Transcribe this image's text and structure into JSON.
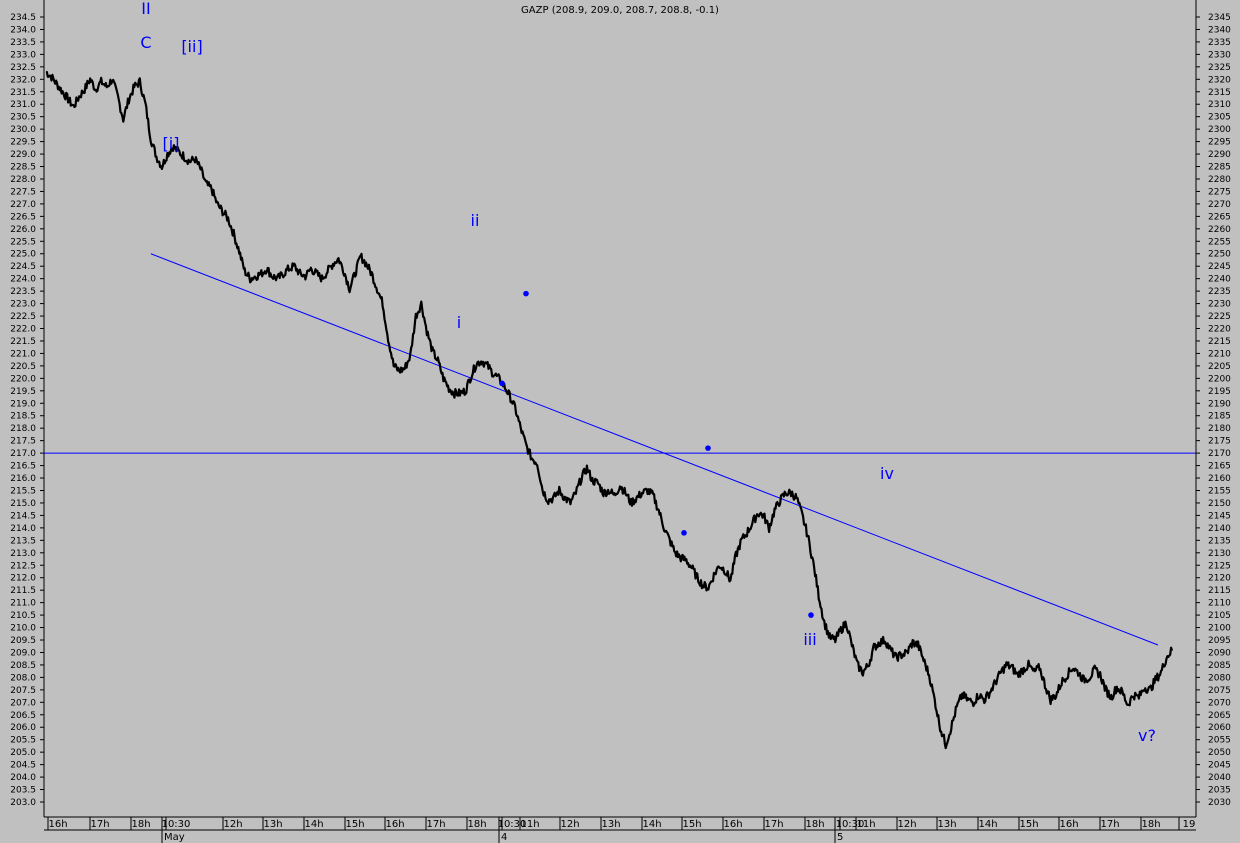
{
  "chart_data": {
    "type": "line",
    "title": "GAZP (208.9, 209.0, 208.7, 208.8, -0.1)",
    "xlabel": "",
    "ylabel": "",
    "ylim": [
      202.5,
      235.0
    ],
    "y_ticks": [
      "234.5",
      "234.0",
      "233.5",
      "233.0",
      "232.5",
      "232.0",
      "231.5",
      "231.0",
      "230.5",
      "230.0",
      "229.5",
      "229.0",
      "228.5",
      "228.0",
      "227.5",
      "227.0",
      "226.5",
      "226.0",
      "225.5",
      "225.0",
      "224.5",
      "224.0",
      "223.5",
      "223.0",
      "222.5",
      "222.0",
      "221.5",
      "221.0",
      "220.5",
      "220.0",
      "219.5",
      "219.0",
      "218.5",
      "218.0",
      "217.5",
      "217.0",
      "216.5",
      "216.0",
      "215.5",
      "215.0",
      "214.5",
      "214.0",
      "213.5",
      "213.0",
      "212.5",
      "212.0",
      "211.5",
      "211.0",
      "210.5",
      "210.0",
      "209.5",
      "209.0",
      "208.5",
      "208.0",
      "207.5",
      "207.0",
      "206.5",
      "206.0",
      "205.5",
      "205.0",
      "204.5",
      "204.0",
      "203.5",
      "203.0"
    ],
    "x_ticks": [
      "16h",
      "17h",
      "18h",
      "10:30",
      "12h",
      "13h",
      "14h",
      "15h",
      "16h",
      "17h",
      "18h",
      "10:30",
      "11h",
      "12h",
      "13h",
      "14h",
      "15h",
      "16h",
      "17h",
      "18h",
      "10:30",
      "11h",
      "12h",
      "13h",
      "14h",
      "15h",
      "16h",
      "17h",
      "18h",
      "19"
    ],
    "date_labels": [
      "May",
      "4",
      "5"
    ],
    "grid": false,
    "series": [
      {
        "values": [
          232.3,
          232.1,
          231.8,
          231.5,
          231.2,
          230.9,
          231.3,
          231.6,
          232.0,
          231.6,
          231.9,
          231.7,
          232.0,
          231.3,
          230.4,
          231.2,
          231.7,
          231.9,
          231.0,
          229.6,
          228.9,
          228.5,
          229.0,
          229.3,
          229.1,
          228.9,
          228.7,
          228.8,
          228.4,
          227.8,
          227.6,
          227.0,
          226.7,
          226.4,
          225.8,
          225.1,
          224.3,
          224.0,
          224.1,
          224.2,
          224.4,
          224.1,
          224.0,
          224.2,
          224.4,
          224.5,
          224.2,
          224.1,
          224.4,
          224.2,
          224.0,
          224.3,
          224.6,
          224.8,
          224.3,
          223.6,
          224.2,
          224.9,
          224.6,
          224.2,
          223.6,
          223.0,
          221.6,
          220.5,
          220.3,
          220.4,
          220.9,
          222.5,
          223.0,
          221.9,
          221.1,
          220.7,
          220.0,
          219.6,
          219.4,
          219.4,
          219.5,
          220.1,
          220.6,
          220.7,
          220.5,
          220.2,
          220.0,
          219.7,
          219.3,
          218.8,
          218.0,
          217.3,
          216.8,
          216.6,
          215.5,
          215.1,
          215.2,
          215.5,
          215.2,
          215.0,
          215.4,
          216.0,
          216.4,
          215.9,
          215.8,
          215.4,
          215.5,
          215.3,
          215.7,
          215.4,
          215.0,
          215.2,
          215.4,
          215.5,
          215.3,
          214.7,
          214.0,
          213.5,
          213.0,
          212.8,
          212.7,
          212.4,
          212.0,
          211.7,
          211.6,
          212.1,
          212.5,
          212.3,
          211.9,
          212.9,
          213.5,
          213.8,
          214.2,
          214.6,
          214.5,
          214.0,
          214.7,
          215.1,
          215.4,
          215.4,
          215.2,
          214.5,
          213.7,
          212.6,
          211.3,
          210.2,
          209.6,
          209.5,
          209.9,
          210.2,
          209.3,
          208.5,
          208.2,
          208.5,
          209.2,
          209.4,
          209.5,
          209.1,
          208.8,
          208.9,
          209.0,
          209.4,
          209.3,
          208.7,
          208.1,
          207.1,
          206.0,
          205.3,
          206.0,
          206.8,
          207.3,
          207.1,
          207.0,
          207.3,
          207.1,
          207.4,
          207.8,
          208.2,
          208.5,
          208.4,
          208.1,
          208.3,
          208.5,
          208.2,
          208.4,
          207.7,
          207.1,
          207.3,
          207.8,
          208.1,
          208.4,
          208.2,
          207.9,
          208.0,
          208.3,
          208.1,
          207.5,
          207.2,
          207.6,
          207.4,
          206.9,
          207.3,
          207.2,
          207.6,
          207.5,
          207.9,
          208.2,
          208.8,
          209.1
        ]
      }
    ],
    "annotations": {
      "wave_labels": [
        "II",
        "C",
        "[ii]",
        "[i]",
        "ii",
        "i",
        "iii",
        "iv",
        "v?"
      ],
      "horizontal_line_y": 217.0,
      "trendline": {
        "from": [
          19,
          225.0
        ],
        "to": [
          62,
          209.3
        ]
      },
      "markers": [
        223.4,
        219.8,
        217.2,
        213.8,
        210.5
      ]
    },
    "colors": {
      "price": "#000000",
      "annotation": "#0000ff",
      "background": "#c0c0c0"
    }
  }
}
